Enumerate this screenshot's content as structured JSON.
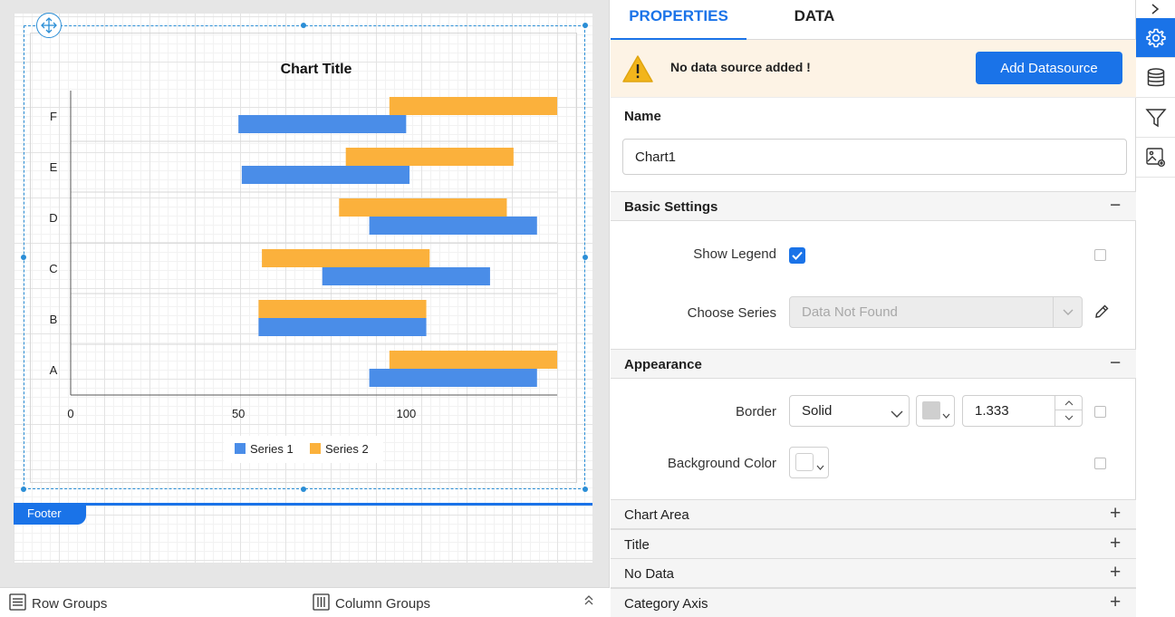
{
  "designer": {
    "footer_label": "Footer",
    "row_groups_label": "Row Groups",
    "column_groups_label": "Column Groups"
  },
  "chart_data": {
    "type": "bar",
    "orientation": "horizontal",
    "title": "Chart Title",
    "categories": [
      "A",
      "B",
      "C",
      "D",
      "E",
      "F"
    ],
    "series": [
      {
        "name": "Series 1",
        "color": "#4a8de8",
        "ranges": [
          [
            89,
            139
          ],
          [
            56,
            106
          ],
          [
            75,
            125
          ],
          [
            89,
            139
          ],
          [
            51,
            101
          ],
          [
            50,
            100
          ]
        ]
      },
      {
        "name": "Series 2",
        "color": "#fbb13c",
        "ranges": [
          [
            95,
            145
          ],
          [
            56,
            106
          ],
          [
            57,
            107
          ],
          [
            80,
            130
          ],
          [
            82,
            132
          ],
          [
            95,
            145
          ]
        ]
      }
    ],
    "x_ticks": [
      "0",
      "50",
      "100"
    ],
    "xlim": [
      0,
      145
    ],
    "legend_position": "bottom",
    "grid": true
  },
  "properties": {
    "tabs": [
      "PROPERTIES",
      "DATA"
    ],
    "active_tab": "PROPERTIES",
    "warning_text": "No data source added !",
    "add_datasource_label": "Add Datasource",
    "name_label": "Name",
    "name_value": "Chart1",
    "basic_settings": {
      "title": "Basic Settings",
      "show_legend_label": "Show Legend",
      "show_legend_checked": true,
      "choose_series_label": "Choose Series",
      "choose_series_placeholder": "Data Not Found"
    },
    "appearance": {
      "title": "Appearance",
      "border_label": "Border",
      "border_style": "Solid",
      "border_color": "#cfcfcf",
      "border_width": "1.333",
      "background_color_label": "Background Color",
      "background_color": "#ffffff"
    },
    "collapsed_sections": [
      "Chart Area",
      "Title",
      "No Data",
      "Category Axis"
    ]
  },
  "toolbar": {
    "icons": [
      "chevron-right-icon",
      "gear-icon",
      "database-icon",
      "filter-icon",
      "image-settings-icon"
    ]
  }
}
